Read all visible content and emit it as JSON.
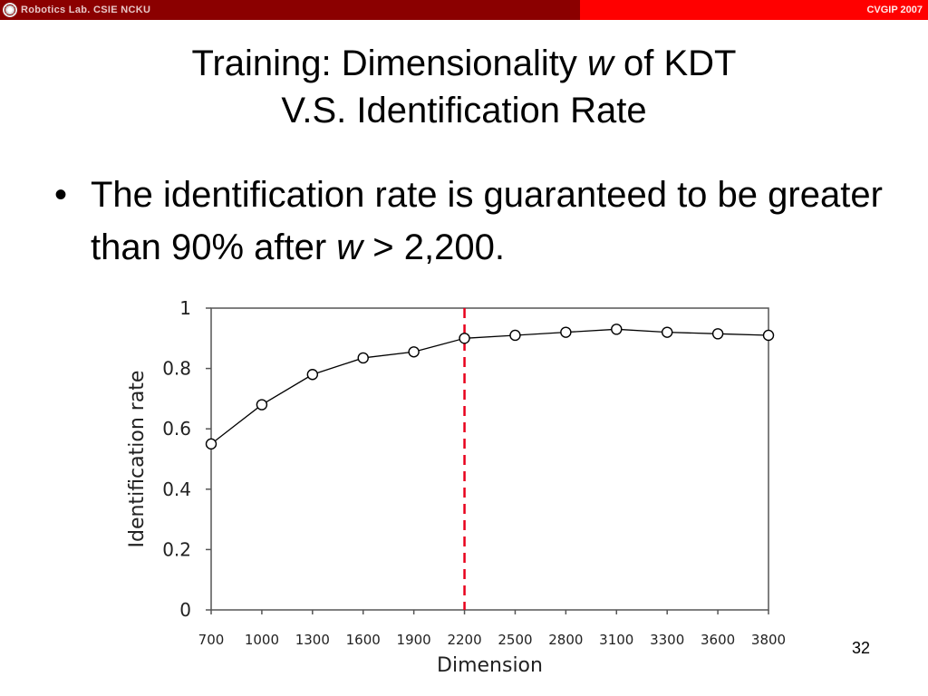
{
  "header": {
    "lab": "Robotics Lab. CSIE NCKU",
    "conference": "CVGIP 2007"
  },
  "slide": {
    "title_line1_pre": "Training: Dimensionality ",
    "title_var": "w",
    "title_line1_post": " of KDT",
    "title_line2": "V.S. Identification Rate",
    "bullet_pre": "The identification rate is guaranteed to be greater than 90% after ",
    "bullet_var": "w",
    "bullet_post": " > 2,200.",
    "page_number": "32"
  },
  "colors": {
    "header_left": "#8b0000",
    "header_right": "#ff0000",
    "threshold_line": "#e8001c",
    "series_line": "#000000"
  },
  "chart_data": {
    "type": "line",
    "xlabel": "Dimension",
    "ylabel": "Identification rate",
    "categories": [
      "700",
      "1000",
      "1300",
      "1600",
      "1900",
      "2200",
      "2500",
      "2800",
      "3100",
      "3300",
      "3600",
      "3800"
    ],
    "series": [
      {
        "values": [
          0.55,
          0.68,
          0.78,
          0.835,
          0.855,
          0.9,
          0.91,
          0.92,
          0.93,
          0.92,
          0.915,
          0.91
        ]
      }
    ],
    "ylim": [
      0,
      1
    ],
    "yticks": [
      "0",
      "0.2",
      "0.4",
      "0.6",
      "0.8",
      "1"
    ],
    "threshold_x": "2200",
    "grid": false,
    "marker": "open-circle"
  }
}
